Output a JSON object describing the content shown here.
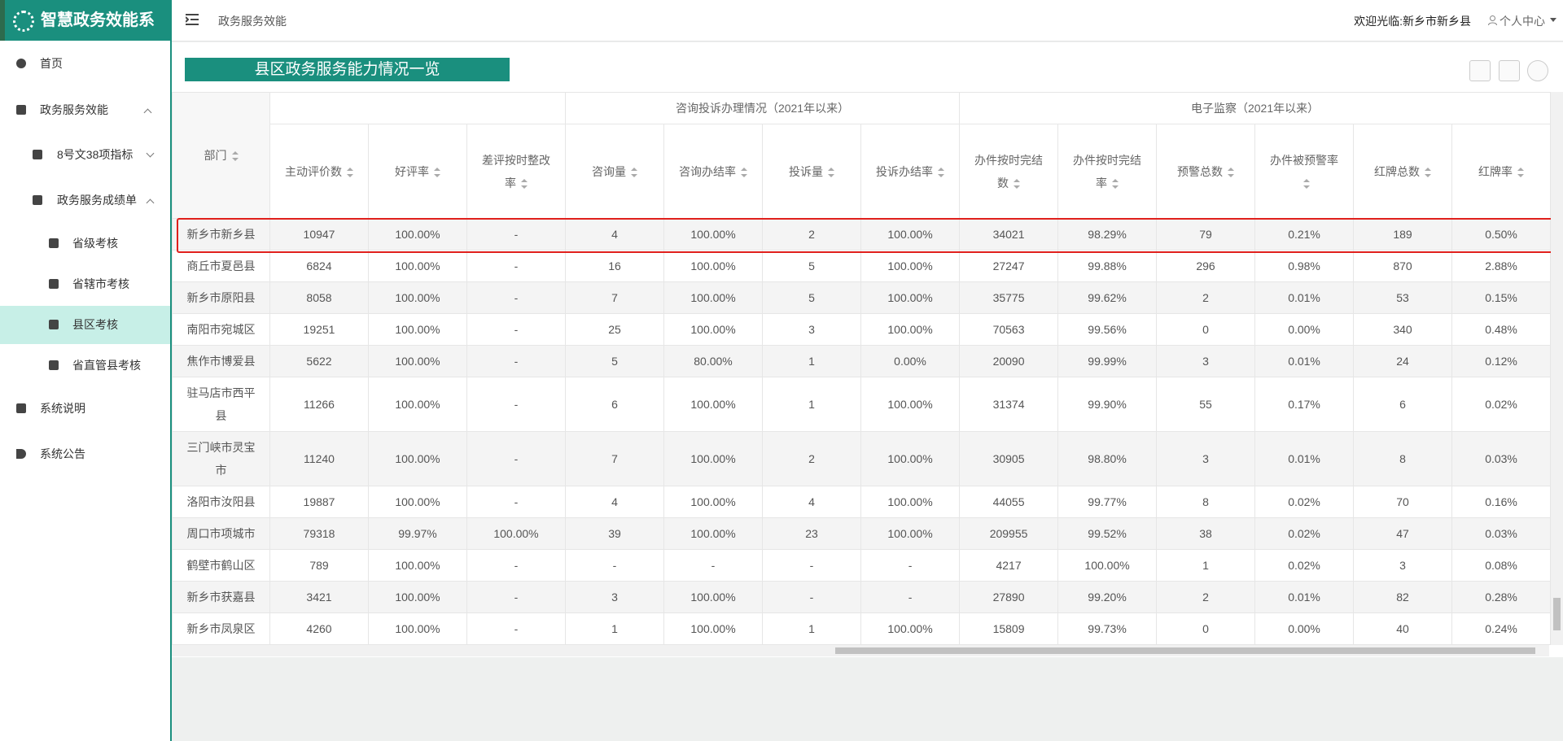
{
  "sidebar": {
    "brand": "智慧政务效能系统",
    "menu": [
      "首页",
      "政务服务效能",
      "8号文38项指标",
      "政务服务成绩单",
      "省级考核",
      "省辖市考核",
      "县区考核",
      "省直管县考核",
      "系统说明",
      "系统公告"
    ]
  },
  "header": {
    "breadcrumb": "政务服务效能",
    "welcome": "欢迎光临:新乡市新乡县",
    "user": "个人中心"
  },
  "panel": {
    "title": "县区政务服务能力情况一览"
  },
  "table": {
    "first_column": "部门",
    "groups": [
      "咨询投诉办理情况（2021年以来）",
      "电子监察（2021年以来）"
    ],
    "columns": [
      "主动评价数",
      "好评率",
      "差评按时整改率",
      "咨询量",
      "咨询办结率",
      "投诉量",
      "投诉办结率",
      "办件按时完结数",
      "办件按时完结率",
      "预警总数",
      "办件被预警率",
      "红牌总数",
      "红牌率"
    ],
    "rows": [
      [
        "新乡市新乡县",
        "10947",
        "100.00%",
        "-",
        "4",
        "100.00%",
        "2",
        "100.00%",
        "34021",
        "98.29%",
        "79",
        "0.21%",
        "189",
        "0.50%"
      ],
      [
        "商丘市夏邑县",
        "6824",
        "100.00%",
        "-",
        "16",
        "100.00%",
        "5",
        "100.00%",
        "27247",
        "99.88%",
        "296",
        "0.98%",
        "870",
        "2.88%"
      ],
      [
        "新乡市原阳县",
        "8058",
        "100.00%",
        "-",
        "7",
        "100.00%",
        "5",
        "100.00%",
        "35775",
        "99.62%",
        "2",
        "0.01%",
        "53",
        "0.15%"
      ],
      [
        "南阳市宛城区",
        "19251",
        "100.00%",
        "-",
        "25",
        "100.00%",
        "3",
        "100.00%",
        "70563",
        "99.56%",
        "0",
        "0.00%",
        "340",
        "0.48%"
      ],
      [
        "焦作市博爱县",
        "5622",
        "100.00%",
        "-",
        "5",
        "80.00%",
        "1",
        "0.00%",
        "20090",
        "99.99%",
        "3",
        "0.01%",
        "24",
        "0.12%"
      ],
      [
        "驻马店市西平县",
        "11266",
        "100.00%",
        "-",
        "6",
        "100.00%",
        "1",
        "100.00%",
        "31374",
        "99.90%",
        "55",
        "0.17%",
        "6",
        "0.02%"
      ],
      [
        "三门峡市灵宝市",
        "11240",
        "100.00%",
        "-",
        "7",
        "100.00%",
        "2",
        "100.00%",
        "30905",
        "98.80%",
        "3",
        "0.01%",
        "8",
        "0.03%"
      ],
      [
        "洛阳市汝阳县",
        "19887",
        "100.00%",
        "-",
        "4",
        "100.00%",
        "4",
        "100.00%",
        "44055",
        "99.77%",
        "8",
        "0.02%",
        "70",
        "0.16%"
      ],
      [
        "周口市项城市",
        "79318",
        "99.97%",
        "100.00%",
        "39",
        "100.00%",
        "23",
        "100.00%",
        "209955",
        "99.52%",
        "38",
        "0.02%",
        "47",
        "0.03%"
      ],
      [
        "鹤壁市鹤山区",
        "789",
        "100.00%",
        "-",
        "-",
        "-",
        "-",
        "-",
        "4217",
        "100.00%",
        "1",
        "0.02%",
        "3",
        "0.08%"
      ],
      [
        "新乡市获嘉县",
        "3421",
        "100.00%",
        "-",
        "3",
        "100.00%",
        "-",
        "-",
        "27890",
        "99.20%",
        "2",
        "0.01%",
        "82",
        "0.28%"
      ],
      [
        "新乡市凤泉区",
        "4260",
        "100.00%",
        "-",
        "1",
        "100.00%",
        "1",
        "100.00%",
        "15809",
        "99.73%",
        "0",
        "0.00%",
        "40",
        "0.24%"
      ]
    ]
  }
}
